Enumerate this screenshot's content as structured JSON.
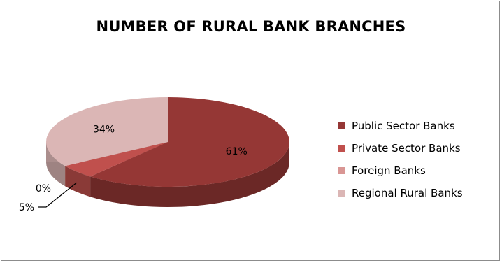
{
  "chart_data": {
    "type": "pie",
    "title": "NUMBER OF RURAL BANK BRANCHES",
    "style": "3d",
    "categories": [
      "Public Sector Banks",
      "Private Sector Banks",
      "Foreign Banks",
      "Regional Rural Banks"
    ],
    "values": [
      61,
      5,
      0,
      34
    ],
    "data_labels": [
      "61%",
      "5%",
      "0%",
      "34%"
    ],
    "colors": [
      "#953735",
      "#C0504D",
      "#D99694",
      "#DBB6B5"
    ],
    "legend_position": "right"
  }
}
